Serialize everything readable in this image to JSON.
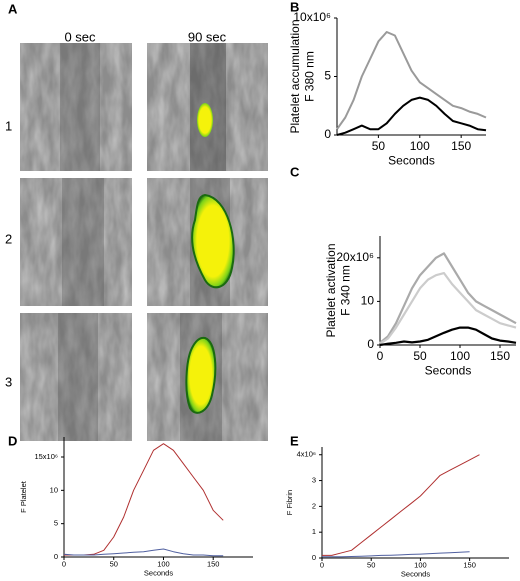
{
  "figure_a": {
    "label": "A",
    "columns": [
      "0 sec",
      "90 sec"
    ],
    "rows": [
      "1",
      "2",
      "3"
    ]
  },
  "chart_data": [
    {
      "type": "line",
      "label": "B",
      "xlabel": "Seconds",
      "ylabel": [
        "Platelet accumulation",
        "F 380 nm"
      ],
      "xlim": [
        0,
        180
      ],
      "ylim": [
        0,
        10
      ],
      "xticks": [
        50,
        100,
        150
      ],
      "yticks": [
        0,
        5,
        {
          "value": 10,
          "label": "10x10⁶"
        }
      ],
      "x": [
        0,
        10,
        20,
        30,
        40,
        50,
        60,
        70,
        80,
        90,
        100,
        110,
        120,
        130,
        140,
        150,
        160,
        170,
        180
      ],
      "series": [
        {
          "color": "#9a9a9a",
          "values": [
            0.5,
            1.5,
            3,
            5,
            6.5,
            8,
            8.8,
            8.5,
            7,
            5.5,
            4.5,
            4,
            3.5,
            3,
            2.5,
            2.3,
            2,
            1.8,
            1.5
          ]
        },
        {
          "color": "#000000",
          "values": [
            0,
            0.2,
            0.5,
            0.8,
            0.5,
            0.5,
            1,
            1.8,
            2.5,
            3,
            3.2,
            3,
            2.5,
            1.8,
            1.2,
            1,
            0.8,
            0.5,
            0.4
          ]
        }
      ]
    },
    {
      "type": "line",
      "label": "C",
      "xlabel": "Seconds",
      "ylabel": [
        "Platelet activation",
        "F 340 nm"
      ],
      "xlim": [
        0,
        170
      ],
      "ylim": [
        0,
        25
      ],
      "xticks": [
        0,
        50,
        100,
        150
      ],
      "yticks": [
        0,
        10,
        {
          "value": 20,
          "label": "20x10⁶"
        }
      ],
      "x": [
        0,
        10,
        20,
        30,
        40,
        50,
        60,
        70,
        80,
        90,
        100,
        110,
        120,
        130,
        140,
        150,
        160,
        170
      ],
      "series": [
        {
          "color": "#aaaaaa",
          "values": [
            0.5,
            2,
            5,
            9,
            13,
            16,
            18,
            20,
            21,
            18,
            15,
            12,
            10,
            9,
            8,
            7,
            6,
            5
          ]
        },
        {
          "color": "#cccccc",
          "values": [
            0.3,
            1.5,
            4,
            7,
            10,
            13,
            15,
            16,
            16.5,
            14,
            12,
            10,
            8,
            7,
            6,
            5,
            4.5,
            4
          ]
        },
        {
          "color": "#000000",
          "values": [
            0,
            0.3,
            0.5,
            0.8,
            0.6,
            0.8,
            1.2,
            2,
            2.8,
            3.5,
            4,
            4,
            3.5,
            2.5,
            1.5,
            1,
            0.8,
            0.5
          ]
        }
      ]
    },
    {
      "type": "line",
      "label": "D",
      "xlabel": "Seconds",
      "ylabel": [
        "F Platelet"
      ],
      "xlim": [
        0,
        190
      ],
      "ylim": [
        0,
        18
      ],
      "xticks": [
        0,
        50,
        100,
        150
      ],
      "yticks": [
        0,
        5,
        10,
        {
          "value": 15,
          "label": "15x10⁶"
        }
      ],
      "x": [
        0,
        10,
        20,
        30,
        40,
        50,
        60,
        70,
        80,
        90,
        100,
        110,
        120,
        130,
        140,
        150,
        160
      ],
      "series": [
        {
          "color": "#b03030",
          "values": [
            0.3,
            0.3,
            0.3,
            0.4,
            1,
            3,
            6,
            10,
            13,
            16,
            17,
            16,
            14,
            12,
            10,
            7,
            5.5
          ]
        },
        {
          "color": "#5060a0",
          "values": [
            0.4,
            0.3,
            0.3,
            0.3,
            0.4,
            0.5,
            0.6,
            0.7,
            0.8,
            1,
            1.2,
            0.8,
            0.5,
            0.3,
            0.3,
            0.2,
            0.2
          ]
        }
      ]
    },
    {
      "type": "line",
      "label": "E",
      "xlabel": "Seconds",
      "ylabel": [
        "F Fibrin"
      ],
      "xlim": [
        0,
        190
      ],
      "ylim": [
        0,
        4.3
      ],
      "xticks": [
        0,
        50,
        100,
        150
      ],
      "yticks": [
        0,
        1,
        2,
        3,
        {
          "value": 4,
          "label": "4x10⁶"
        }
      ],
      "x": [
        0,
        10,
        20,
        30,
        40,
        50,
        60,
        70,
        80,
        90,
        100,
        110,
        120,
        130,
        140,
        150,
        160
      ],
      "series": [
        {
          "color": "#b03030",
          "values": [
            0.1,
            0.1,
            0.2,
            0.3,
            0.6,
            0.9,
            1.2,
            1.5,
            1.8,
            2.1,
            2.4,
            2.8,
            3.2,
            3.4,
            3.6,
            3.8,
            4
          ]
        },
        {
          "color": "#5060a0",
          "values": [
            0.05,
            0.05,
            0.05,
            0.06,
            0.07,
            0.08,
            0.1,
            0.11,
            0.12,
            0.14,
            0.15,
            0.17,
            0.19,
            0.2,
            0.22,
            0.24,
            null
          ]
        }
      ]
    }
  ]
}
